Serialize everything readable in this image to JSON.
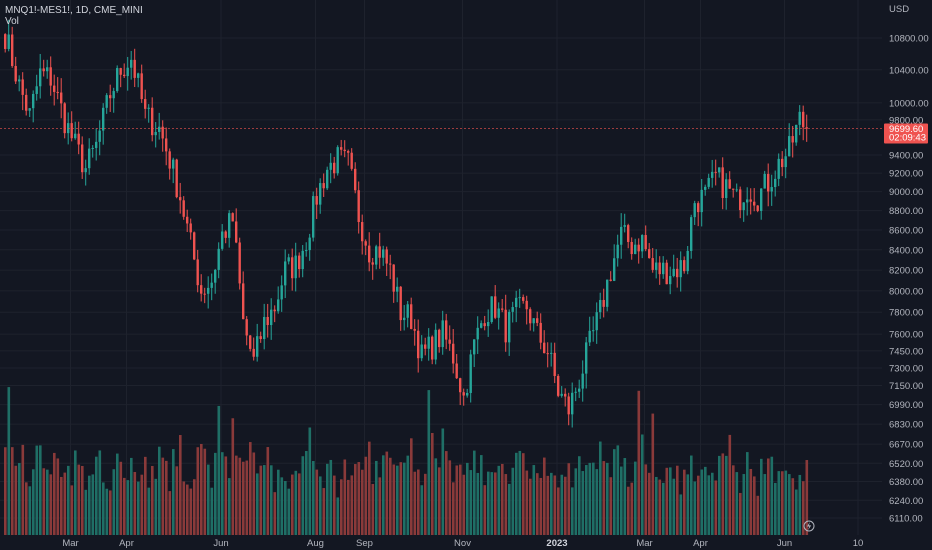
{
  "header": {
    "symbol_line": "MNQ1!-MES1!, 1D, CME_MINI",
    "volume_label": "Vol"
  },
  "axis": {
    "currency": "USD"
  },
  "price_tag": {
    "price": "9699.60",
    "countdown": "02:09:43"
  },
  "colors": {
    "background": "#131722",
    "grid": "#1e222d",
    "up": "#26a69a",
    "down": "#ef5350",
    "up_volume": "#1f6f66",
    "down_volume": "#8a3a3a",
    "axis_text": "#b2b5be",
    "price_line": "#ef5350"
  },
  "icons": {
    "indicator_badge": "lightning-icon"
  },
  "chart_data": {
    "type": "candlestick",
    "title": "MNQ1!-MES1!, 1D, CME_MINI",
    "price_scale": {
      "tick_labels": [
        "10800.00",
        "10400.00",
        "10000.00",
        "9800.00",
        "9400.00",
        "9200.00",
        "9000.00",
        "8800.00",
        "8600.00",
        "8400.00",
        "8200.00",
        "8000.00",
        "7800.00",
        "7600.00",
        "7450.00",
        "7300.00",
        "7150.00",
        "6990.00",
        "6830.00",
        "6670.00",
        "6520.00",
        "6380.00",
        "6240.00",
        "6110.00"
      ],
      "tick_values": [
        10800,
        10400,
        10000,
        9800,
        9400,
        9200,
        9000,
        8800,
        8600,
        8400,
        8200,
        8000,
        7800,
        7600,
        7450,
        7300,
        7150,
        6990,
        6830,
        6670,
        6520,
        6380,
        6240,
        6110
      ],
      "scale": "log",
      "current_price": 9699.6
    },
    "time_axis": {
      "labels": [
        "Mar",
        "Apr",
        "Jun",
        "Aug",
        "Sep",
        "Nov",
        "2023",
        "Mar",
        "Apr",
        "Jun",
        "10"
      ],
      "label_bar_index": [
        19,
        35,
        62,
        89,
        103,
        131,
        158,
        183,
        199,
        223,
        244
      ]
    },
    "start_bar_price": 10850,
    "series": [
      {
        "name": "price",
        "keypoints": [
          [
            0,
            10850
          ],
          [
            4,
            10200
          ],
          [
            7,
            9850
          ],
          [
            10,
            10350
          ],
          [
            13,
            10300
          ],
          [
            17,
            9800
          ],
          [
            20,
            9500
          ],
          [
            23,
            9250
          ],
          [
            26,
            9500
          ],
          [
            30,
            10100
          ],
          [
            33,
            10400
          ],
          [
            36,
            10550
          ],
          [
            40,
            9850
          ],
          [
            44,
            9700
          ],
          [
            47,
            9350
          ],
          [
            50,
            8950
          ],
          [
            53,
            8450
          ],
          [
            56,
            8000
          ],
          [
            59,
            8100
          ],
          [
            62,
            8550
          ],
          [
            65,
            8700
          ],
          [
            68,
            7700
          ],
          [
            71,
            7350
          ],
          [
            74,
            7700
          ],
          [
            77,
            7850
          ],
          [
            80,
            8200
          ],
          [
            83,
            8250
          ],
          [
            86,
            8500
          ],
          [
            89,
            8950
          ],
          [
            92,
            9250
          ],
          [
            95,
            9350
          ],
          [
            98,
            9300
          ],
          [
            101,
            8750
          ],
          [
            104,
            8400
          ],
          [
            107,
            8400
          ],
          [
            110,
            8200
          ],
          [
            113,
            7800
          ],
          [
            116,
            7750
          ],
          [
            119,
            7400
          ],
          [
            122,
            7500
          ],
          [
            125,
            7600
          ],
          [
            128,
            7400
          ],
          [
            131,
            7050
          ],
          [
            134,
            7500
          ],
          [
            137,
            7800
          ],
          [
            140,
            7850
          ],
          [
            143,
            7650
          ],
          [
            146,
            7800
          ],
          [
            149,
            7850
          ],
          [
            152,
            7600
          ],
          [
            155,
            7450
          ],
          [
            158,
            7100
          ],
          [
            161,
            6950
          ],
          [
            164,
            7200
          ],
          [
            167,
            7500
          ],
          [
            170,
            7800
          ],
          [
            173,
            8200
          ],
          [
            176,
            8550
          ],
          [
            179,
            8450
          ],
          [
            182,
            8500
          ],
          [
            185,
            8200
          ],
          [
            188,
            8200
          ],
          [
            191,
            8200
          ],
          [
            194,
            8250
          ],
          [
            197,
            8900
          ],
          [
            200,
            8950
          ],
          [
            203,
            9150
          ],
          [
            206,
            9050
          ],
          [
            209,
            8900
          ],
          [
            212,
            9050
          ],
          [
            215,
            8950
          ],
          [
            218,
            9100
          ],
          [
            221,
            9300
          ],
          [
            224,
            9450
          ],
          [
            227,
            9800
          ],
          [
            229,
            9700
          ]
        ]
      },
      {
        "name": "volume",
        "baseline_relative": [
          0.55,
          0.95,
          0.7,
          0.6,
          0.5,
          0.75,
          0.5,
          0.45,
          0.4,
          0.55,
          0.6,
          0.5,
          0.45,
          0.4,
          0.5,
          0.55,
          0.45,
          0.35,
          0.38,
          0.42,
          0.5,
          0.45,
          0.4,
          0.38,
          0.45,
          0.5,
          0.6,
          0.7,
          0.5,
          0.45,
          0.4,
          0.42,
          0.55,
          0.5,
          0.45,
          0.38,
          0.5,
          0.55,
          0.45,
          0.5,
          0.48,
          0.45,
          0.42,
          0.5,
          0.55,
          0.48,
          0.44,
          0.4,
          0.5,
          0.55,
          0.6,
          0.5,
          0.45,
          0.4,
          0.5,
          0.55,
          0.6,
          0.5,
          0.45,
          0.42
        ]
      }
    ],
    "grid": true,
    "legend": "none"
  }
}
